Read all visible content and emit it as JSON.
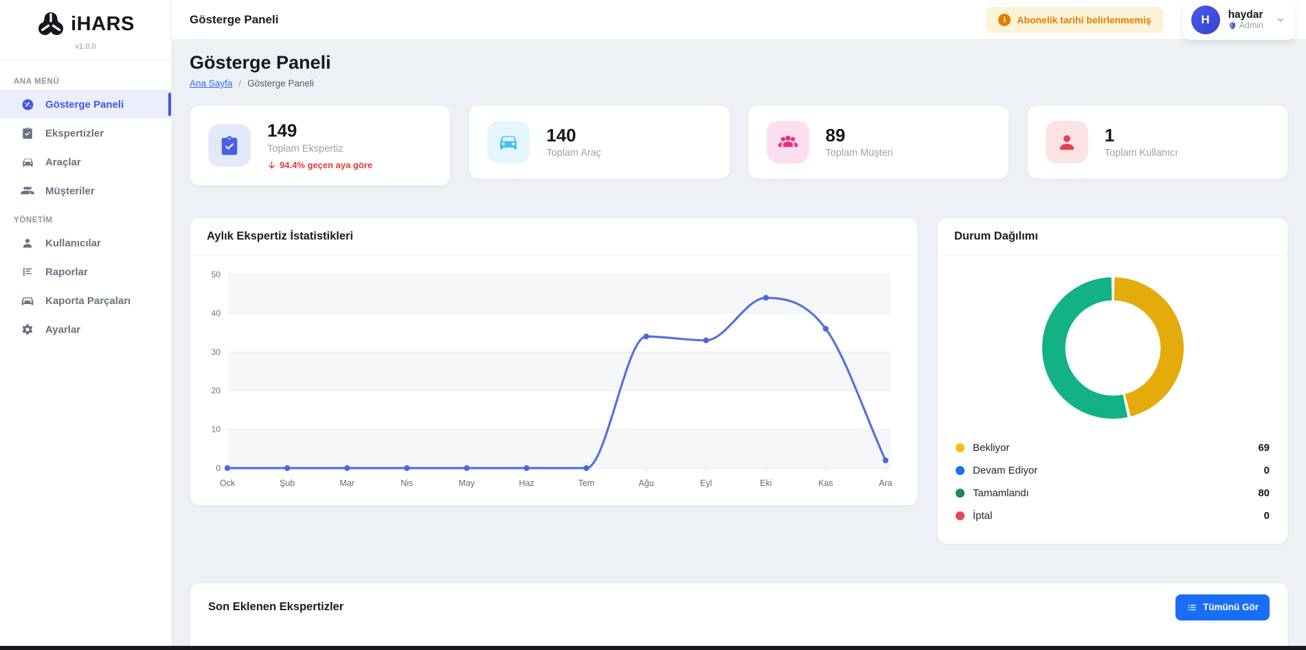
{
  "app": {
    "brand": "iHARS",
    "version": "v1.0.0"
  },
  "sidebar": {
    "sections": [
      {
        "label": "ANA MENÜ",
        "items": [
          {
            "label": "Gösterge Paneli",
            "icon": "gauge-icon",
            "active": true
          },
          {
            "label": "Ekspertizler",
            "icon": "clipboard-check-icon",
            "active": false
          },
          {
            "label": "Araçlar",
            "icon": "car-icon",
            "active": false
          },
          {
            "label": "Müşteriler",
            "icon": "people-icon",
            "active": false
          }
        ]
      },
      {
        "label": "YÖNETİM",
        "items": [
          {
            "label": "Kullanıcılar",
            "icon": "user-icon",
            "active": false
          },
          {
            "label": "Raporlar",
            "icon": "report-icon",
            "active": false
          },
          {
            "label": "Kaporta Parçaları",
            "icon": "car-parts-icon",
            "active": false
          },
          {
            "label": "Ayarlar",
            "icon": "gear-icon",
            "active": false
          }
        ]
      }
    ]
  },
  "header": {
    "title": "Gösterge Paneli",
    "alert": "Abonelik tarihi belirlenmemiş",
    "user": {
      "initial": "H",
      "name": "haydar",
      "role": "Admin"
    }
  },
  "page": {
    "title": "Gösterge Paneli",
    "breadcrumb": [
      "Ana Sayfa",
      "Gösterge Paneli"
    ]
  },
  "stats": [
    {
      "value": "149",
      "label": "Toplam Ekspertiz",
      "delta": "94.4% geçen aya göre",
      "delta_direction": "down",
      "delta_color": "#e03a3a",
      "icon": "clipboard-check-icon",
      "icon_color": "#4b5fe3",
      "icon_bg": "#e4e8fb"
    },
    {
      "value": "140",
      "label": "Toplam Araç",
      "icon": "car-icon",
      "icon_color": "#41c4f1",
      "icon_bg": "#e3f6fd"
    },
    {
      "value": "89",
      "label": "Toplam Müşteri",
      "icon": "people-icon",
      "icon_color": "#ee2d7f",
      "icon_bg": "#fcdfee"
    },
    {
      "value": "1",
      "label": "Toplam Kullanıcı",
      "icon": "user-icon",
      "icon_color": "#e0444f",
      "icon_bg": "#fbe2e4"
    }
  ],
  "chart_data": [
    {
      "type": "line",
      "title": "Aylık Ekspertiz İstatistikleri",
      "categories": [
        "Ock",
        "Şub",
        "Mar",
        "Nis",
        "May",
        "Haz",
        "Tem",
        "Ağu",
        "Eyl",
        "Eki",
        "Kas",
        "Ara"
      ],
      "values": [
        0,
        0,
        0,
        0,
        0,
        0,
        0,
        34,
        33,
        44,
        36,
        2
      ],
      "xlabel": "",
      "ylabel": "",
      "ylim": [
        0,
        50
      ],
      "yticks": [
        0,
        10,
        20,
        30,
        40,
        50
      ],
      "grid": true,
      "legend_position": "none",
      "line_color": "#5470e3",
      "point_color": "#4c68e0",
      "band_color": "#f6f7f8"
    },
    {
      "type": "pie",
      "title": "Durum Dağılımı",
      "labels": [
        "Bekliyor",
        "Devam Ediyor",
        "Tamamlandı",
        "İptal"
      ],
      "values": [
        69,
        0,
        80,
        0
      ],
      "slice_colors": [
        "#e3ab0c",
        "#1673e6",
        "#12b286",
        "#e0475c"
      ],
      "legend_dot_colors": [
        "#fcbd09",
        "#1674e8",
        "#1c8a4d",
        "#e14a5b"
      ],
      "donut": true,
      "legend_position": "bottom"
    }
  ],
  "recent": {
    "title": "Son Eklenen Ekspertizler",
    "view_all_label": "Tümünü Gör"
  }
}
